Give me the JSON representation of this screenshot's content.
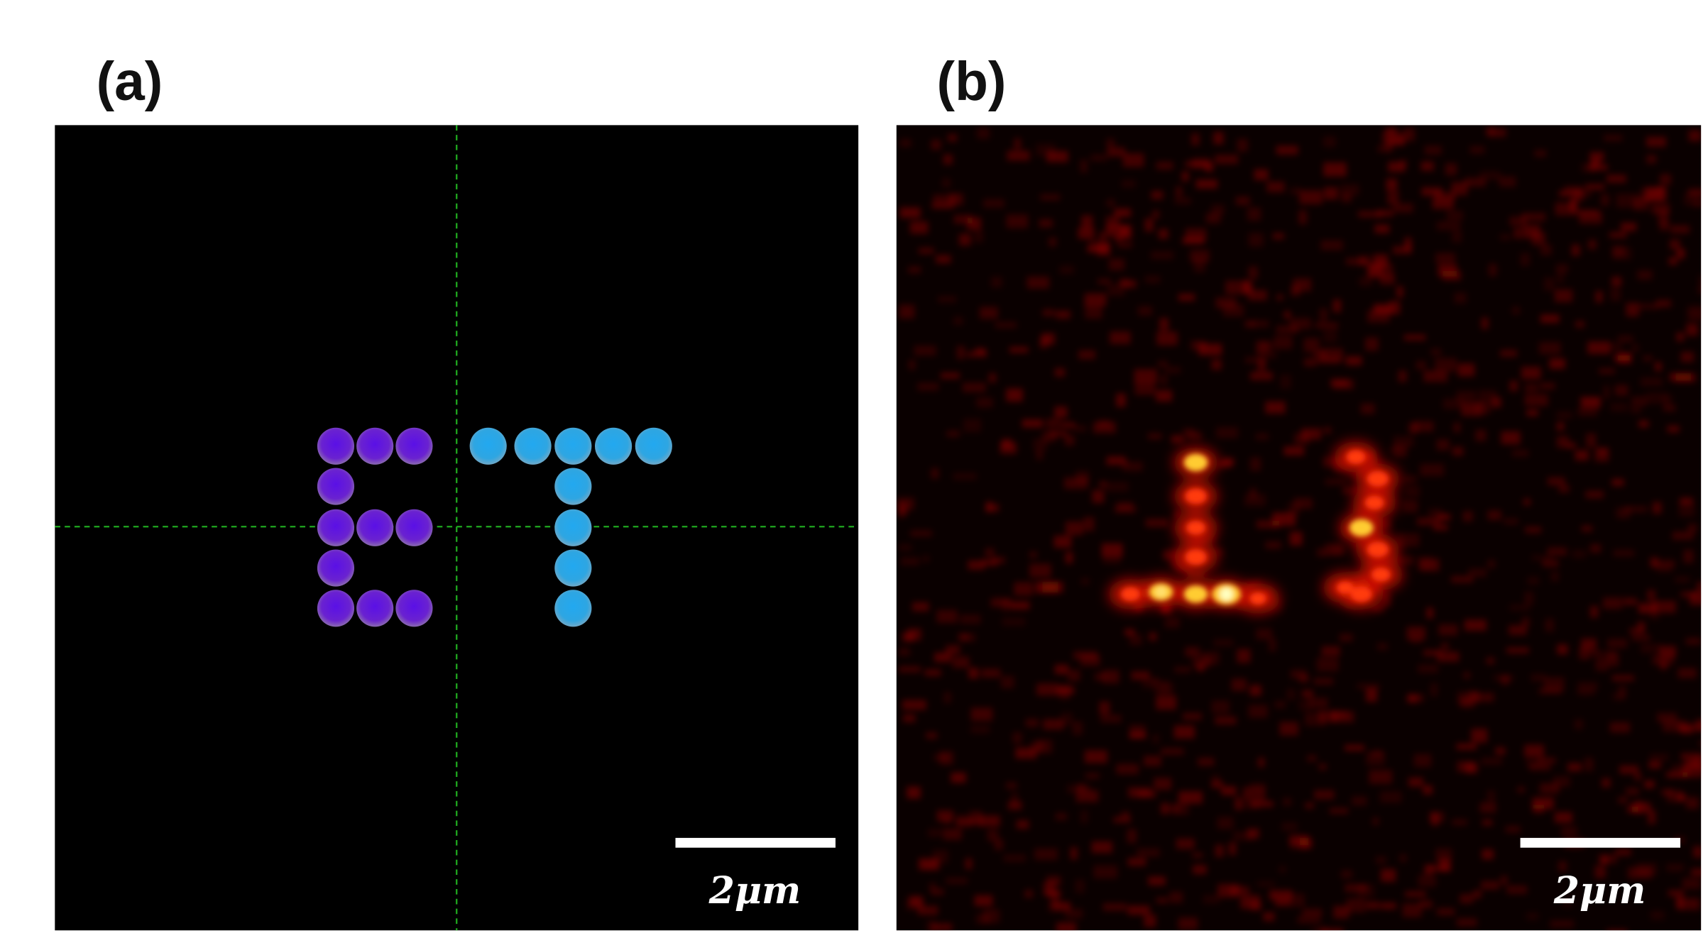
{
  "panels": [
    {
      "label": "(a)",
      "scale_bar": "2μm"
    },
    {
      "label": "(b)",
      "scale_bar": "2μm"
    }
  ]
}
